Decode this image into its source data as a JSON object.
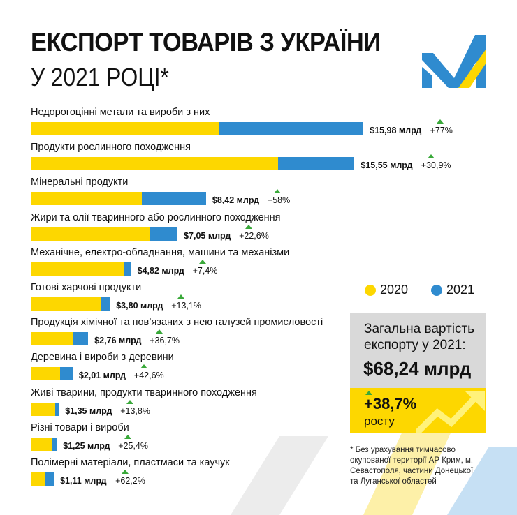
{
  "header": {
    "title": "ЕКСПОРТ ТОВАРІВ З УКРАЇНИ",
    "subtitle": "У 2021 РОЦІ*"
  },
  "colors": {
    "y2020": "#fdd700",
    "y2021": "#2f8bcf",
    "growth": "#3aa93a",
    "total_bg": "#d9d9d9"
  },
  "legend": {
    "items": [
      {
        "label": "2020",
        "color": "#fdd700"
      },
      {
        "label": "2021",
        "color": "#2f8bcf"
      }
    ]
  },
  "chart_data": {
    "type": "bar",
    "orientation": "horizontal",
    "stacked_overlay": "2020 value shown as yellow portion, 2021 value as full bar length",
    "unit": "$ млрд",
    "categories": [
      "Недорогоцінні метали та вироби з них",
      "Продукти рослинного походження",
      "Мінеральні продукти",
      "Жири та олії тваринного або рослинного походження",
      "Механічне, електро-обладнання, машини та механізми",
      "Готові харчові продукти",
      "Продукція хімічної та пов’язаних з нею галузей промисловості",
      "Деревина і вироби з деревини",
      "Живі тварини, продукти тваринного походження",
      "Різні товари і вироби",
      "Полімерні матеріали, пластмаси та каучук"
    ],
    "series": [
      {
        "name": "2020",
        "values": [
          9.03,
          11.88,
          5.33,
          5.75,
          4.49,
          3.36,
          2.02,
          1.41,
          1.19,
          1.0,
          0.68
        ]
      },
      {
        "name": "2021",
        "values": [
          15.98,
          15.55,
          8.42,
          7.05,
          4.82,
          3.8,
          2.76,
          2.01,
          1.35,
          1.25,
          1.11
        ]
      }
    ],
    "value_labels": [
      "$15,98 млрд",
      "$15,55 млрд",
      "$8,42 млрд",
      "$7,05 млрд",
      "$4,82 млрд",
      "$3,80 млрд",
      "$2,76 млрд",
      "$2,01 млрд",
      "$1,35 млрд",
      "$1,25 млрд",
      "$1,11 млрд"
    ],
    "growth_labels": [
      "+77%",
      "+30,9%",
      "+58%",
      "+22,6%",
      "+7,4%",
      "+13,1%",
      "+36,7%",
      "+42,6%",
      "+13,8%",
      "+25,4%",
      "+62,2%"
    ],
    "legend": "right"
  },
  "summary": {
    "total_title": "Загальна вартість експорту у 2021:",
    "total_value": "$68,24 млрд",
    "growth_value": "+38,7%",
    "growth_word": "росту"
  },
  "footnote": "* Без урахування тимчасово окупованої території АР Крим, м. Севастополя, частини Донецької та Луганської областей"
}
